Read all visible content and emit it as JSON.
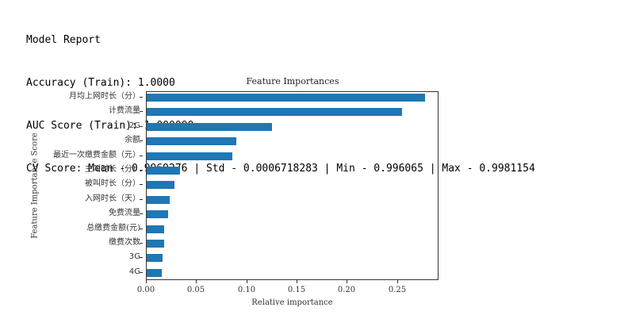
{
  "report": {
    "title": "Model Report",
    "accuracy_line": "Accuracy (Train): 1.0000",
    "auc_line": "AUC Score (Train): 1.000000",
    "cv_line": "CV Score: Mean - 0.9969276 | Std - 0.0006718283 | Min - 0.996065 | Max - 0.9981154"
  },
  "chart": {
    "title": "Feature Importances",
    "xlabel": "Relative importance",
    "ylabel": "Feature Importance Score",
    "xticks": [
      "0.00",
      "0.05",
      "0.10",
      "0.15",
      "0.20",
      "0.25"
    ]
  },
  "chart_data": {
    "type": "bar",
    "orientation": "horizontal",
    "title": "Feature Importances",
    "xlabel": "Relative importance",
    "ylabel": "Feature Importance Score",
    "categories": [
      "月均上网时长（分）",
      "计费流量",
      "2G",
      "余额",
      "最近一次缴费金额（元）",
      "主叫时长（分）",
      "被叫时长（分）",
      "入网时长（天）",
      "免费流量",
      "总缴费金额(元)",
      "缴费次数",
      "3G",
      "4G"
    ],
    "values": [
      0.277,
      0.254,
      0.125,
      0.089,
      0.085,
      0.033,
      0.028,
      0.023,
      0.021,
      0.017,
      0.017,
      0.016,
      0.015
    ],
    "xlim": [
      0,
      0.29
    ],
    "xticks": [
      0.0,
      0.05,
      0.1,
      0.15,
      0.2,
      0.25
    ],
    "grid": false,
    "legend": null,
    "bar_color": "#1f77b4"
  }
}
